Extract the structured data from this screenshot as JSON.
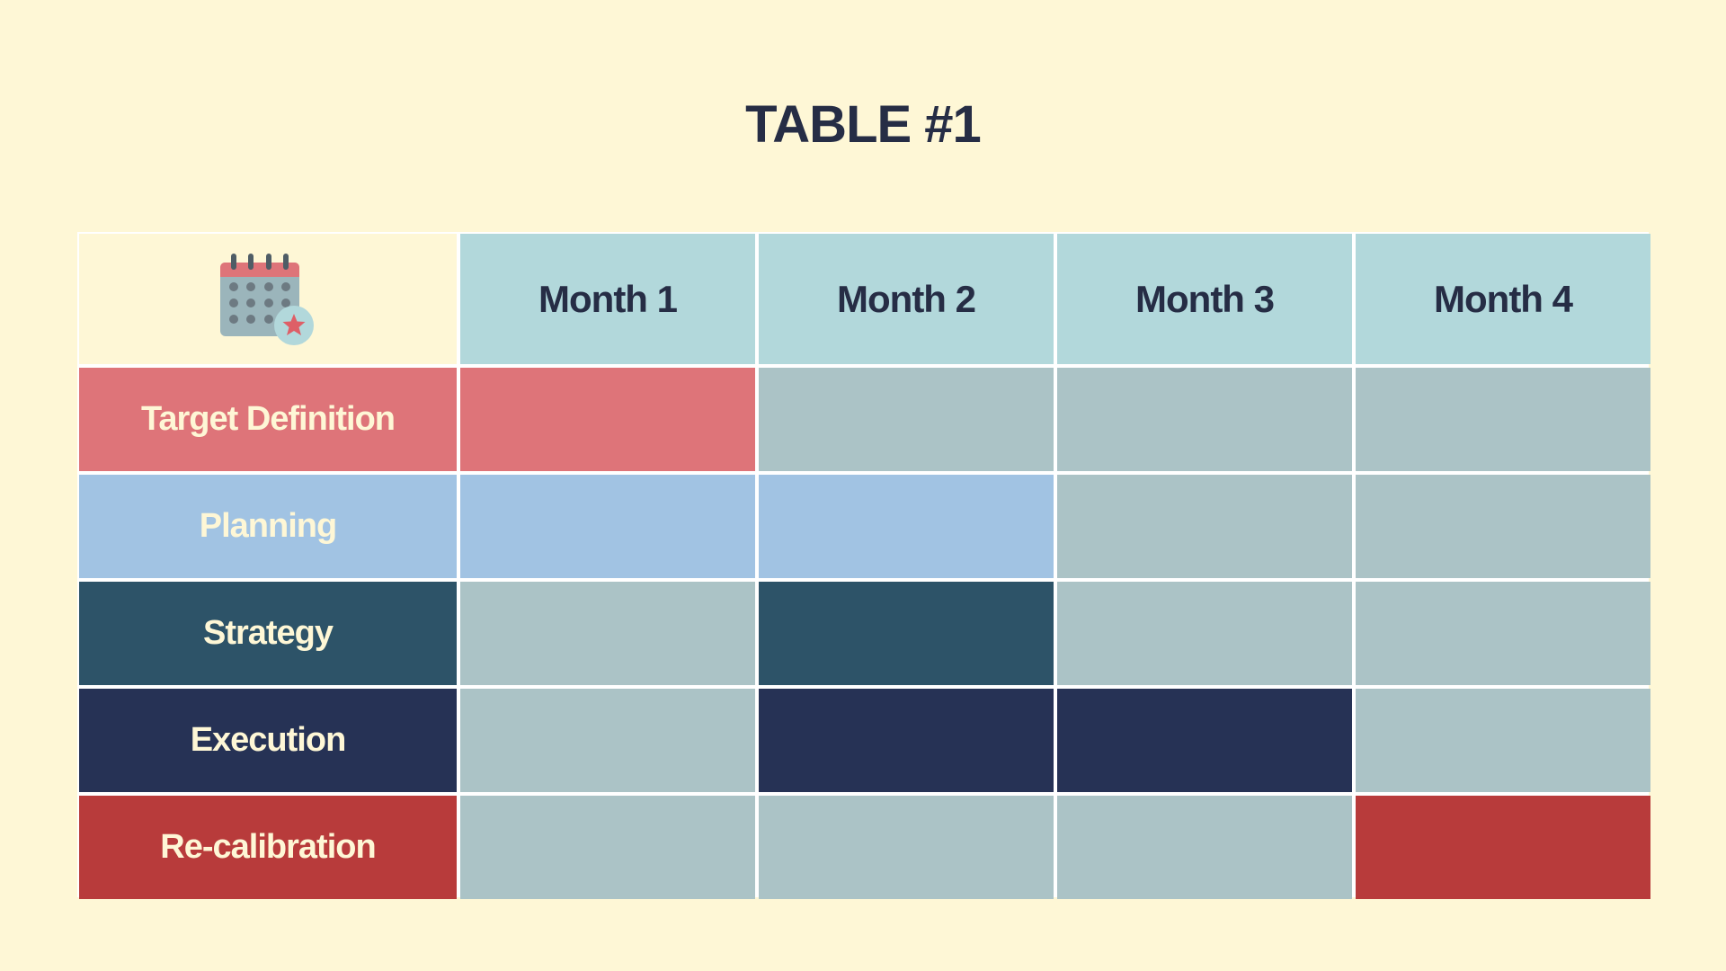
{
  "title": "TABLE #1",
  "chart_data": {
    "type": "table",
    "columns": [
      "Month 1",
      "Month 2",
      "Month 3",
      "Month 4"
    ],
    "rows": [
      {
        "label": "Target Definition",
        "color": "#de7479",
        "active": [
          true,
          false,
          false,
          false
        ]
      },
      {
        "label": "Planning",
        "color": "#a1c3e3",
        "active": [
          true,
          true,
          false,
          false
        ]
      },
      {
        "label": "Strategy",
        "color": "#2d5368",
        "active": [
          false,
          true,
          false,
          false
        ]
      },
      {
        "label": "Execution",
        "color": "#263255",
        "active": [
          false,
          true,
          true,
          false
        ]
      },
      {
        "label": "Re-calibration",
        "color": "#b83b3b",
        "active": [
          false,
          false,
          false,
          true
        ]
      }
    ],
    "inactive_color": "#abc3c6",
    "header_color": "#b2d8db",
    "background_color": "#fef7d6",
    "label_text_color": "#fef7d6"
  },
  "corner_icon": "calendar-star-icon"
}
